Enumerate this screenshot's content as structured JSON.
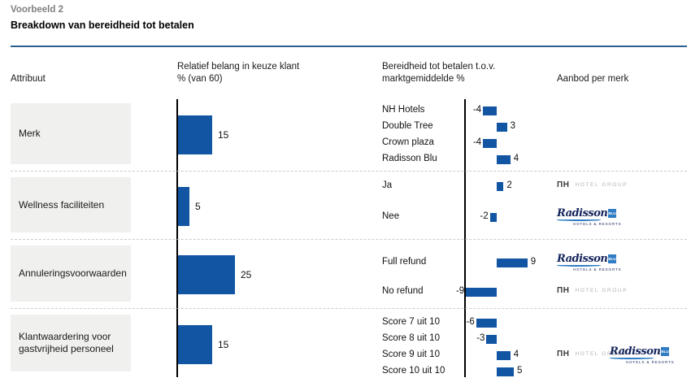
{
  "header": {
    "eyebrow": "Voorbeeld 2",
    "title": "Breakdown van bereidheid tot betalen"
  },
  "columns": {
    "attribute": "Attribuut",
    "importance": "Relatief belang in keuze klant\n% (van 60)",
    "wtp": "Bereidheid tot betalen t.o.v.\nmarktgemiddelde %",
    "brands": "Aanbod per merk"
  },
  "colors": {
    "bar": "#1155a3",
    "axis": "#000000",
    "row_box": "#f0f0ef",
    "separator": "#cccccc",
    "header_rule": "#2d5f8f",
    "eyebrow_gray": "#7f7f7f",
    "nh_dark": "#3a3a3a",
    "nh_light_gray": "#b3b3b3",
    "radisson_navy": "#14245c",
    "radisson_blue": "#2f7cc4"
  },
  "logo_text": {
    "nh_main": "ΠH",
    "nh_sub": "HOTEL GROUP",
    "radisson_script": "Radisson",
    "radisson_blu": "BLU",
    "radisson_sub": "HOTELS & RESORTS"
  },
  "chart_data": {
    "type": "bar",
    "title": "Breakdown van bereidheid tot betalen",
    "axes": {
      "importance": {
        "label": "Relatief belang in keuze klant % (van 60)",
        "unit": "%",
        "zero_at": "left"
      },
      "wtp": {
        "label": "Bereidheid tot betalen t.o.v. marktgemiddelde %",
        "unit": "%",
        "zero_at": "center"
      }
    },
    "legend": null,
    "grid": false,
    "rows": [
      {
        "attribute": "Merk",
        "importance": 15,
        "levels": [
          {
            "label": "NH Hotels",
            "value": -4
          },
          {
            "label": "Double Tree",
            "value": 3
          },
          {
            "label": "Crown plaza",
            "value": -4
          },
          {
            "label": "Radisson Blu",
            "value": 4
          }
        ],
        "brand_logos": []
      },
      {
        "attribute": "Wellness faciliteiten",
        "importance": 5,
        "levels": [
          {
            "label": "Ja",
            "value": 2
          },
          {
            "label": "Nee",
            "value": -2
          }
        ],
        "brand_logos": [
          {
            "brand": "nh",
            "aligned_level": "Ja"
          },
          {
            "brand": "radisson",
            "aligned_level": "Nee"
          }
        ]
      },
      {
        "attribute": "Annuleringsvoorwaarden",
        "importance": 25,
        "levels": [
          {
            "label": "Full refund",
            "value": 9
          },
          {
            "label": "No refund",
            "value": -9
          }
        ],
        "brand_logos": [
          {
            "brand": "radisson",
            "aligned_level": "Full refund"
          },
          {
            "brand": "nh",
            "aligned_level": "No refund"
          }
        ]
      },
      {
        "attribute": "Klantwaardering voor gastvrijheid personeel",
        "importance": 15,
        "levels": [
          {
            "label": "Score 7 uit 10",
            "value": -6
          },
          {
            "label": "Score 8 uit 10",
            "value": -3
          },
          {
            "label": "Score 9 uit 10",
            "value": 4
          },
          {
            "label": "Score 10 uit 10",
            "value": 5
          }
        ],
        "brand_logos": [
          {
            "brand": "nh",
            "aligned_level": "Score 9 uit 10"
          },
          {
            "brand": "radisson",
            "aligned_level": "Score 9 uit 10"
          }
        ]
      }
    ]
  }
}
